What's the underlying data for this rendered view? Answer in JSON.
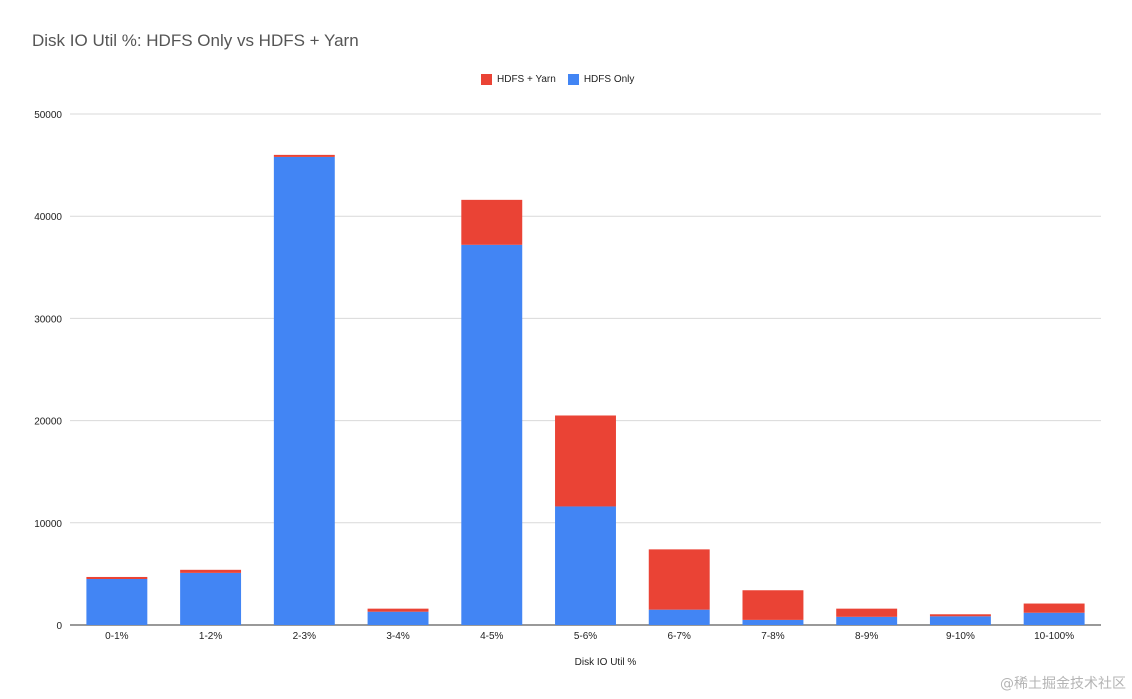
{
  "watermark": "@稀土掘金技术社区",
  "chart_data": {
    "type": "bar",
    "stacked": true,
    "title": "Disk IO Util %: HDFS Only vs HDFS + Yarn",
    "xlabel": "Disk IO Util %",
    "ylabel": "",
    "ylim": [
      0,
      50000
    ],
    "yticks": [
      "0",
      "10000",
      "20000",
      "30000",
      "40000",
      "50000"
    ],
    "grid": true,
    "legend_position": "top",
    "categories": [
      "0-1%",
      "1-2%",
      "2-3%",
      "3-4%",
      "4-5%",
      "5-6%",
      "6-7%",
      "7-8%",
      "8-9%",
      "9-10%",
      "10-100%"
    ],
    "series": [
      {
        "name": "HDFS Only",
        "color": "#4285F4",
        "values": [
          4500,
          5100,
          45800,
          1300,
          37200,
          11600,
          1500,
          500,
          800,
          850,
          1200
        ]
      },
      {
        "name": "HDFS + Yarn",
        "color": "#EA4335",
        "values": [
          200,
          300,
          200,
          300,
          4400,
          8900,
          5900,
          2900,
          800,
          200,
          900
        ]
      }
    ],
    "legend_order": [
      "HDFS + Yarn",
      "HDFS Only"
    ]
  }
}
